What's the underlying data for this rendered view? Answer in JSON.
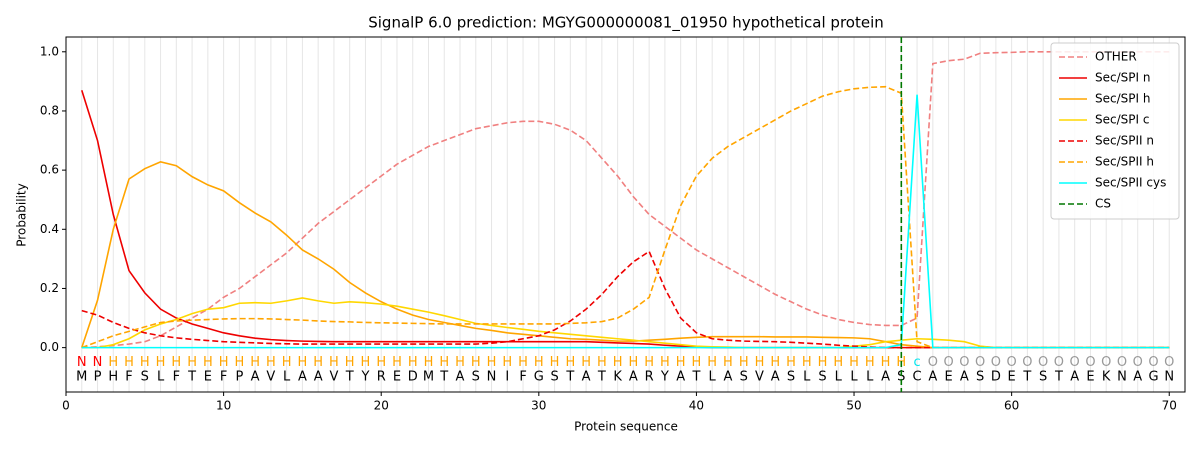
{
  "chart_data": {
    "type": "line",
    "title": "SignalP 6.0 prediction: MGYG000000081_01950 hypothetical protein",
    "xlabel": "Protein sequence",
    "ylabel": "Probability",
    "xlim": [
      0,
      71
    ],
    "ylim": [
      -0.15,
      1.05
    ],
    "xticks": [
      0,
      10,
      20,
      30,
      40,
      50,
      60,
      70
    ],
    "yticks": [
      {
        "value": 0,
        "label": "0.0"
      },
      {
        "value": 0.2,
        "label": "0.2"
      },
      {
        "value": 0.4,
        "label": "0.4"
      },
      {
        "value": 0.6,
        "label": "0.6"
      },
      {
        "value": 0.8,
        "label": "0.8"
      },
      {
        "value": 1.0,
        "label": "1.0"
      }
    ],
    "grid": "x",
    "legend": "upper right",
    "x": [
      1,
      2,
      3,
      4,
      5,
      6,
      7,
      8,
      9,
      10,
      11,
      12,
      13,
      14,
      15,
      16,
      17,
      18,
      19,
      20,
      21,
      22,
      23,
      24,
      25,
      26,
      27,
      28,
      29,
      30,
      31,
      32,
      33,
      34,
      35,
      36,
      37,
      38,
      39,
      40,
      41,
      42,
      43,
      44,
      45,
      46,
      47,
      48,
      49,
      50,
      51,
      52,
      53,
      54,
      55,
      56,
      57,
      58,
      59,
      60,
      61,
      62,
      63,
      64,
      65,
      66,
      67,
      68,
      69,
      70
    ],
    "residues": [
      "M",
      "P",
      "H",
      "F",
      "S",
      "L",
      "F",
      "T",
      "E",
      "F",
      "P",
      "A",
      "V",
      "L",
      "A",
      "A",
      "V",
      "T",
      "Y",
      "R",
      "E",
      "D",
      "M",
      "T",
      "A",
      "S",
      "N",
      "I",
      "F",
      "G",
      "S",
      "T",
      "A",
      "T",
      "K",
      "A",
      "R",
      "Y",
      "A",
      "T",
      "L",
      "A",
      "S",
      "V",
      "A",
      "S",
      "L",
      "S",
      "L",
      "L",
      "L",
      "A",
      "S",
      "C",
      "A",
      "E",
      "A",
      "S",
      "D",
      "E",
      "T",
      "S",
      "T",
      "A",
      "E",
      "K",
      "N",
      "A",
      "G",
      "N"
    ],
    "regions": [
      "N",
      "N",
      "H",
      "H",
      "H",
      "H",
      "H",
      "H",
      "H",
      "H",
      "H",
      "H",
      "H",
      "H",
      "H",
      "H",
      "H",
      "H",
      "H",
      "H",
      "H",
      "H",
      "H",
      "H",
      "H",
      "H",
      "H",
      "H",
      "H",
      "H",
      "H",
      "H",
      "H",
      "H",
      "H",
      "H",
      "H",
      "H",
      "H",
      "H",
      "H",
      "H",
      "H",
      "H",
      "H",
      "H",
      "H",
      "H",
      "H",
      "H",
      "H",
      "H",
      "H",
      "c",
      "O",
      "O",
      "O",
      "O",
      "O",
      "O",
      "O",
      "O",
      "O",
      "O",
      "O",
      "O",
      "O",
      "O",
      "O",
      "O"
    ],
    "region_colors": {
      "N": "#ff0000",
      "H": "#ffa500",
      "c": "#00e5ee",
      "O": "#999999"
    },
    "series": [
      {
        "name": "OTHER",
        "color": "#f08080",
        "style": "dashed",
        "values": [
          0,
          0.003,
          0.007,
          0.012,
          0.02,
          0.04,
          0.07,
          0.1,
          0.13,
          0.17,
          0.2,
          0.24,
          0.28,
          0.32,
          0.37,
          0.42,
          0.46,
          0.5,
          0.54,
          0.58,
          0.62,
          0.65,
          0.68,
          0.7,
          0.72,
          0.74,
          0.75,
          0.76,
          0.765,
          0.765,
          0.755,
          0.735,
          0.7,
          0.64,
          0.58,
          0.51,
          0.45,
          0.41,
          0.37,
          0.33,
          0.3,
          0.27,
          0.24,
          0.21,
          0.18,
          0.155,
          0.13,
          0.11,
          0.095,
          0.085,
          0.078,
          0.075,
          0.075,
          0.1,
          0.96,
          0.97,
          0.975,
          0.995,
          0.997,
          0.998,
          1,
          1,
          1,
          1,
          1,
          1,
          1,
          1,
          1,
          1
        ]
      },
      {
        "name": "Sec/SPI n",
        "color": "#ee0000",
        "style": "solid",
        "values": [
          0.87,
          0.7,
          0.45,
          0.26,
          0.185,
          0.13,
          0.1,
          0.08,
          0.065,
          0.05,
          0.04,
          0.032,
          0.027,
          0.024,
          0.022,
          0.021,
          0.02,
          0.02,
          0.02,
          0.02,
          0.02,
          0.02,
          0.02,
          0.02,
          0.02,
          0.02,
          0.02,
          0.02,
          0.02,
          0.02,
          0.02,
          0.02,
          0.02,
          0.018,
          0.016,
          0.014,
          0.012,
          0.008,
          0.005,
          0.002,
          0,
          0,
          0,
          0,
          0,
          0,
          0,
          0,
          0,
          0,
          0,
          0,
          0,
          0,
          0,
          0,
          0,
          0,
          0,
          0,
          0,
          0,
          0,
          0,
          0,
          0,
          0,
          0,
          0,
          0
        ]
      },
      {
        "name": "Sec/SPI h",
        "color": "#ffa500",
        "style": "solid",
        "values": [
          0,
          0.16,
          0.4,
          0.57,
          0.605,
          0.628,
          0.615,
          0.578,
          0.55,
          0.53,
          0.49,
          0.455,
          0.425,
          0.38,
          0.33,
          0.3,
          0.265,
          0.22,
          0.185,
          0.155,
          0.13,
          0.11,
          0.095,
          0.085,
          0.075,
          0.065,
          0.058,
          0.05,
          0.045,
          0.04,
          0.035,
          0.03,
          0.028,
          0.025,
          0.022,
          0.022,
          0.025,
          0.028,
          0.032,
          0.035,
          0.037,
          0.037,
          0.037,
          0.037,
          0.036,
          0.036,
          0.036,
          0.035,
          0.034,
          0.033,
          0.03,
          0.02,
          0.01,
          0.005,
          0,
          0,
          0,
          0,
          0,
          0,
          0,
          0,
          0,
          0,
          0,
          0,
          0,
          0,
          0,
          0
        ]
      },
      {
        "name": "Sec/SPI c",
        "color": "#ffd700",
        "style": "solid",
        "values": [
          0,
          0,
          0.01,
          0.03,
          0.06,
          0.08,
          0.095,
          0.115,
          0.13,
          0.135,
          0.15,
          0.152,
          0.15,
          0.158,
          0.168,
          0.158,
          0.15,
          0.155,
          0.152,
          0.147,
          0.14,
          0.13,
          0.12,
          0.108,
          0.095,
          0.082,
          0.075,
          0.068,
          0.062,
          0.055,
          0.05,
          0.045,
          0.04,
          0.035,
          0.03,
          0.025,
          0.02,
          0.015,
          0.01,
          0.005,
          0.003,
          0.002,
          0,
          0,
          0,
          0,
          0,
          0,
          0,
          0.005,
          0.01,
          0.02,
          0.025,
          0.03,
          0.028,
          0.025,
          0.02,
          0.005,
          0,
          0,
          0,
          0,
          0,
          0,
          0,
          0,
          0,
          0,
          0,
          0
        ]
      },
      {
        "name": "Sec/SPII n",
        "color": "#ee0000",
        "style": "dashed",
        "values": [
          0.125,
          0.11,
          0.085,
          0.065,
          0.05,
          0.04,
          0.033,
          0.028,
          0.024,
          0.02,
          0.018,
          0.016,
          0.014,
          0.013,
          0.012,
          0.012,
          0.012,
          0.012,
          0.012,
          0.012,
          0.012,
          0.012,
          0.012,
          0.012,
          0.012,
          0.012,
          0.015,
          0.02,
          0.03,
          0.04,
          0.06,
          0.09,
          0.13,
          0.18,
          0.24,
          0.29,
          0.325,
          0.2,
          0.1,
          0.05,
          0.03,
          0.025,
          0.022,
          0.021,
          0.02,
          0.018,
          0.015,
          0.012,
          0.008,
          0.005,
          0.002,
          0,
          0,
          0,
          0,
          0,
          0,
          0,
          0,
          0,
          0,
          0,
          0,
          0,
          0,
          0,
          0,
          0,
          0,
          0
        ]
      },
      {
        "name": "Sec/SPII h",
        "color": "#ffa500",
        "style": "dashed",
        "values": [
          0,
          0.02,
          0.04,
          0.055,
          0.07,
          0.085,
          0.09,
          0.093,
          0.095,
          0.097,
          0.098,
          0.098,
          0.097,
          0.095,
          0.093,
          0.09,
          0.088,
          0.087,
          0.085,
          0.084,
          0.083,
          0.082,
          0.081,
          0.08,
          0.08,
          0.08,
          0.08,
          0.08,
          0.08,
          0.08,
          0.08,
          0.082,
          0.084,
          0.088,
          0.1,
          0.13,
          0.17,
          0.33,
          0.48,
          0.58,
          0.64,
          0.68,
          0.71,
          0.74,
          0.77,
          0.8,
          0.825,
          0.85,
          0.865,
          0.875,
          0.88,
          0.882,
          0.86,
          0.02,
          0,
          0,
          0,
          0,
          0,
          0,
          0,
          0,
          0,
          0,
          0,
          0,
          0,
          0,
          0,
          0
        ]
      },
      {
        "name": "Sec/SPII cys",
        "color": "#00ffff",
        "style": "solid",
        "values": [
          0,
          0,
          0,
          0,
          0,
          0,
          0,
          0,
          0,
          0,
          0,
          0,
          0,
          0,
          0,
          0,
          0,
          0,
          0,
          0,
          0,
          0,
          0,
          0,
          0,
          0,
          0,
          0,
          0,
          0,
          0,
          0,
          0,
          0,
          0,
          0,
          0,
          0,
          0,
          0,
          0,
          0,
          0,
          0,
          0,
          0,
          0,
          0,
          0,
          0,
          0,
          0,
          0.01,
          0.855,
          0,
          0,
          0,
          0,
          0,
          0,
          0,
          0,
          0,
          0,
          0,
          0,
          0,
          0,
          0,
          0
        ]
      }
    ],
    "cs": {
      "name": "CS",
      "x": 53,
      "color": "#007700"
    }
  }
}
